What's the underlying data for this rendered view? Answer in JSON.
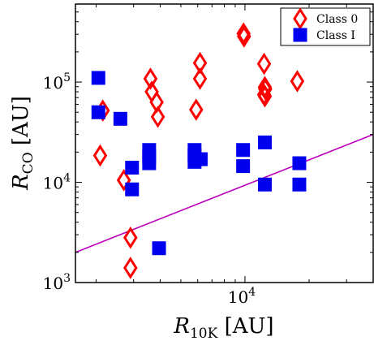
{
  "chart_data": {
    "type": "scatter",
    "title": "",
    "xlabel": {
      "main": "R",
      "sub": "10K",
      "unit": "[AU]"
    },
    "ylabel": {
      "main": "R",
      "sub": "CO",
      "unit": "[AU]"
    },
    "x_scale": "log",
    "y_scale": "log",
    "xlim": [
      1600,
      40000
    ],
    "ylim": [
      1000,
      600000
    ],
    "x_ticks": [
      {
        "value": 10000,
        "base": "10",
        "exp": "4"
      }
    ],
    "y_ticks": [
      {
        "value": 1000,
        "base": "10",
        "exp": "3"
      },
      {
        "value": 10000,
        "base": "10",
        "exp": "4"
      },
      {
        "value": 100000,
        "base": "10",
        "exp": "5"
      }
    ],
    "grid": false,
    "legend_position": "top-right",
    "series": [
      {
        "name": "Class 0",
        "marker": "diamond-open",
        "color": "#ff0000",
        "points": [
          [
            2150,
            52000
          ],
          [
            2090,
            18500
          ],
          [
            2700,
            10500
          ],
          [
            2900,
            2800
          ],
          [
            2900,
            1400
          ],
          [
            3600,
            108000
          ],
          [
            3650,
            80000
          ],
          [
            3850,
            63000
          ],
          [
            3900,
            45000
          ],
          [
            5900,
            53000
          ],
          [
            6150,
            155000
          ],
          [
            6150,
            108000
          ],
          [
            9850,
            305000
          ],
          [
            9900,
            285000
          ],
          [
            12300,
            152000
          ],
          [
            12400,
            89000
          ],
          [
            12450,
            85000
          ],
          [
            12300,
            75000
          ],
          [
            12400,
            72000
          ],
          [
            17600,
            102000
          ]
        ]
      },
      {
        "name": "Class I",
        "marker": "square-filled",
        "color": "#0000ee",
        "points": [
          [
            2050,
            110000
          ],
          [
            2050,
            50000
          ],
          [
            2600,
            43000
          ],
          [
            2950,
            14000
          ],
          [
            2950,
            8500
          ],
          [
            3550,
            21000
          ],
          [
            3550,
            18000
          ],
          [
            3550,
            15500
          ],
          [
            3950,
            2200
          ],
          [
            5800,
            21000
          ],
          [
            5800,
            18500
          ],
          [
            5800,
            16000
          ],
          [
            6200,
            17000
          ],
          [
            9800,
            21000
          ],
          [
            9800,
            14500
          ],
          [
            12400,
            25000
          ],
          [
            12400,
            9500
          ],
          [
            18000,
            15500
          ],
          [
            18000,
            9500
          ]
        ]
      }
    ],
    "fit_line": {
      "color": "#bb00bb",
      "points": [
        [
          1600,
          2000
        ],
        [
          40000,
          30000
        ]
      ]
    }
  }
}
